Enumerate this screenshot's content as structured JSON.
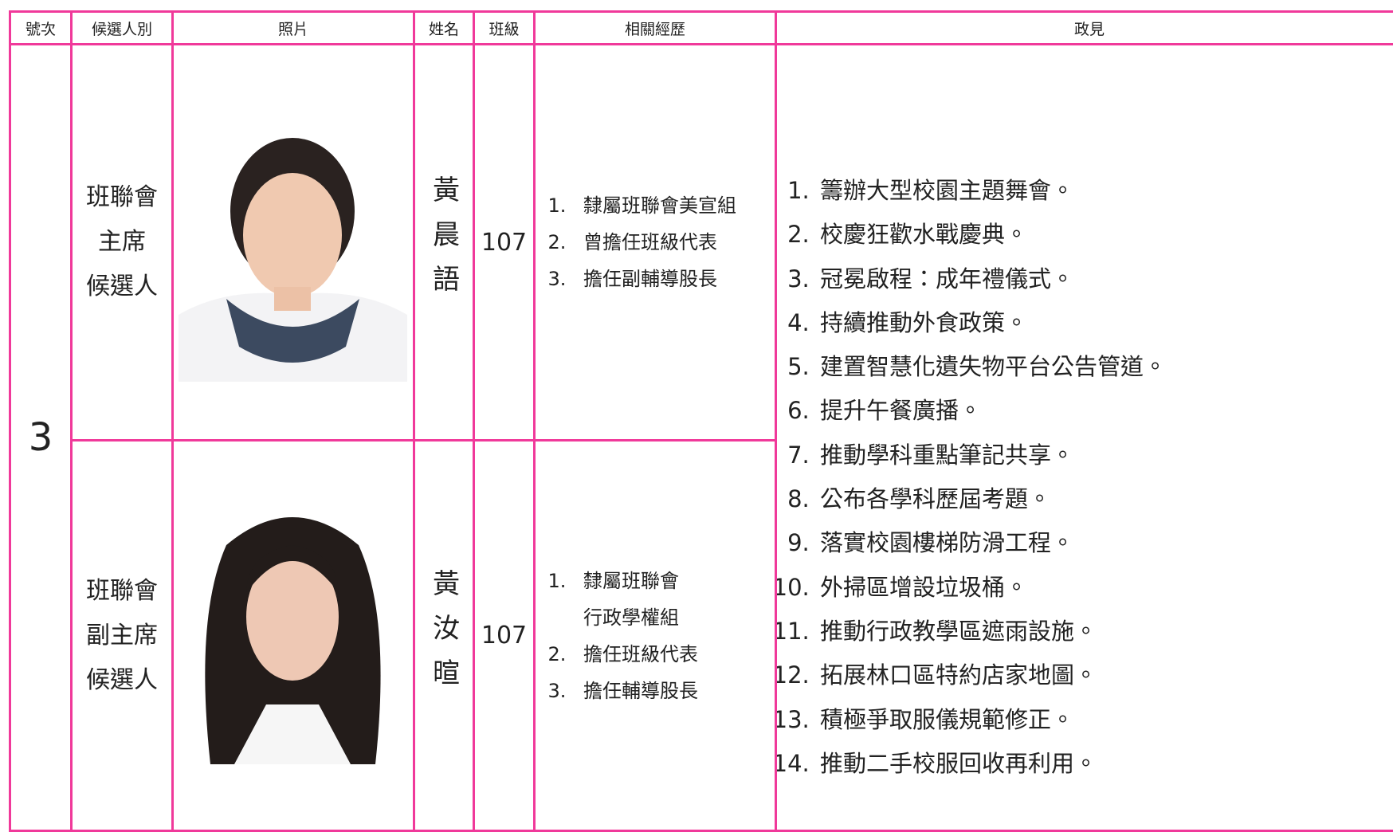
{
  "header": [
    "號次",
    "候選人別",
    "照片",
    "姓名",
    "班級",
    "相關經歷",
    "政見"
  ],
  "number": "3",
  "candidates": [
    {
      "type": [
        "班聯會",
        "主席",
        "候選人"
      ],
      "name": "黃晨語",
      "class": "107",
      "experience": [
        [
          "隸屬班聯會美宣組"
        ],
        [
          "曾擔任班級代表"
        ],
        [
          "擔任副輔導股長"
        ]
      ]
    },
    {
      "type": [
        "班聯會",
        "副主席",
        "候選人"
      ],
      "name": "黃汝暄",
      "class": "107",
      "experience": [
        [
          "隸屬班聯會",
          "行政學權組"
        ],
        [
          "擔任班級代表"
        ],
        [
          "擔任輔導股長"
        ]
      ]
    }
  ],
  "policies": [
    "籌辦大型校園主題舞會。",
    "校慶狂歡水戰慶典。",
    "冠冕啟程：成年禮儀式。",
    "持續推動外食政策。",
    "建置智慧化遺失物平台公告管道。",
    "提升午餐廣播。",
    "推動學科重點筆記共享。",
    "公布各學科歷屆考題。",
    "落實校園樓梯防滑工程。",
    "外掃區增設垃圾桶。",
    "推動行政教學區遮雨設施。",
    "拓展林口區特約店家地圖。",
    "積極爭取服儀規範修正。",
    "推動二手校服回收再利用。"
  ]
}
